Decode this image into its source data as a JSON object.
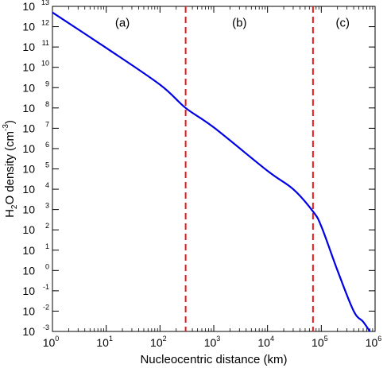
{
  "chart_data": {
    "type": "line",
    "xscale": "log",
    "yscale": "log",
    "xlim": [
      1,
      1000000
    ],
    "ylim": [
      0.001,
      10000000000000
    ],
    "x_ticks": [
      1,
      10,
      100,
      1000,
      10000,
      100000,
      1000000
    ],
    "x_tick_labels": [
      {
        "base": "10",
        "exp": "0"
      },
      {
        "base": "10",
        "exp": "1"
      },
      {
        "base": "10",
        "exp": "2"
      },
      {
        "base": "10",
        "exp": "3"
      },
      {
        "base": "10",
        "exp": "4"
      },
      {
        "base": "10",
        "exp": "5"
      },
      {
        "base": "10",
        "exp": "6"
      }
    ],
    "y_ticks": [
      0.001,
      0.01,
      0.1,
      1,
      10,
      100,
      1000,
      10000,
      100000,
      1000000,
      10000000,
      100000000,
      1000000000,
      10000000000,
      100000000000,
      1000000000000,
      10000000000000
    ],
    "y_tick_labels": [
      {
        "base": "10",
        "exp": "-3"
      },
      {
        "base": "10",
        "exp": "-2"
      },
      {
        "base": "10",
        "exp": "-1"
      },
      {
        "base": "10",
        "exp": "0"
      },
      {
        "base": "10",
        "exp": "1"
      },
      {
        "base": "10",
        "exp": "2"
      },
      {
        "base": "10",
        "exp": "3"
      },
      {
        "base": "10",
        "exp": "4"
      },
      {
        "base": "10",
        "exp": "5"
      },
      {
        "base": "10",
        "exp": "6"
      },
      {
        "base": "10",
        "exp": "7"
      },
      {
        "base": "10",
        "exp": "8"
      },
      {
        "base": "10",
        "exp": "9"
      },
      {
        "base": "10",
        "exp": "10"
      },
      {
        "base": "10",
        "exp": "11"
      },
      {
        "base": "10",
        "exp": "12"
      },
      {
        "base": "10",
        "exp": "13"
      }
    ],
    "xlabel": "Nucleocentric distance (km)",
    "ylabel_parts": {
      "pre": "H",
      "sub": "2",
      "mid": "O density (cm",
      "sup": "-3",
      "post": ")"
    },
    "grid": false,
    "series": [
      {
        "color": "#0000e6",
        "x": [
          1,
          10,
          100,
          300,
          1000,
          10000,
          30000,
          70000,
          100000,
          200000,
          400000,
          600000,
          800000
        ],
        "y": [
          5000000000000,
          90000000000,
          1400000000,
          100000000,
          11000000,
          80000,
          10000,
          800,
          150,
          1,
          0.01,
          0.003,
          0.001
        ]
      }
    ],
    "region_boundaries": {
      "color": "#e61919",
      "style": "dashed",
      "x": [
        300,
        70000
      ]
    },
    "region_labels": [
      {
        "text": "(a)",
        "x": 20,
        "y": 1000000000000
      },
      {
        "text": "(b)",
        "x": 3000,
        "y": 1000000000000
      },
      {
        "text": "(c)",
        "x": 250000,
        "y": 1000000000000
      }
    ]
  }
}
